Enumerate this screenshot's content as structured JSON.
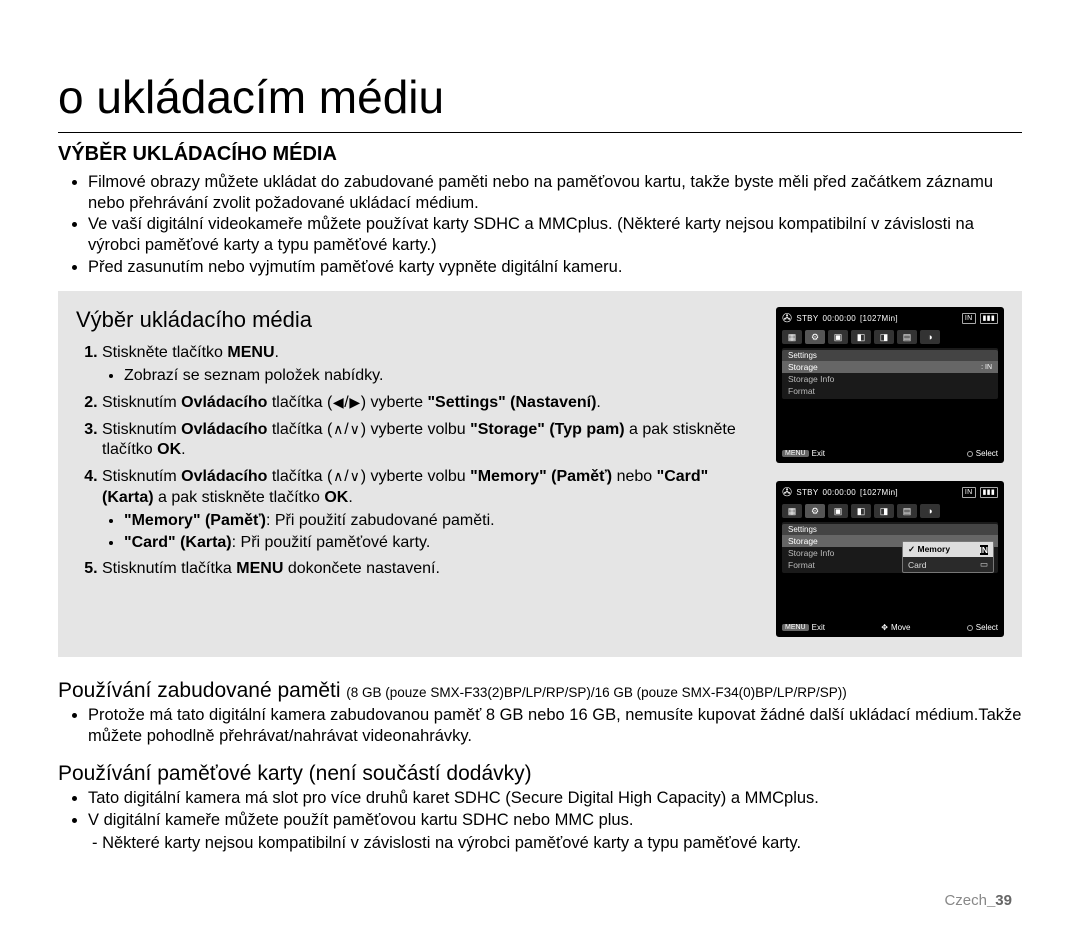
{
  "page": {
    "title": "o ukládacím médiu",
    "section_heading": "VÝBĚR UKLÁDACÍHO MÉDIA",
    "footer_lang": "Czech",
    "footer_page": "_39"
  },
  "intro_bullets": [
    "Filmové obrazy můžete ukládat do zabudované paměti nebo na paměťovou kartu, takže byste měli před začátkem záznamu nebo přehrávání zvolit požadované ukládací médium.",
    "Ve vaší digitální videokameře můžete používat karty SDHC a MMCplus. (Některé karty nejsou kompatibilní v závislosti na výrobci paměťové karty a typu paměťové karty.)",
    "Před zasunutím nebo vyjmutím paměťové karty vypněte digitální kameru."
  ],
  "graybox": {
    "title": "Výběr ukládacího média",
    "steps": {
      "s1_a": "Stiskněte tlačítko ",
      "s1_b_bold": "MENU",
      "s1_c": ".",
      "s1_sub": "Zobrazí se seznam položek nabídky.",
      "s2_a": "Stisknutím ",
      "s2_b_bold": "Ovládacího",
      "s2_c": " tlačítka (",
      "s2_d": ") vyberte ",
      "s2_e_bold": "\"Settings\" (Nastavení)",
      "s2_f": ".",
      "s3_a": "Stisknutím ",
      "s3_b_bold": "Ovládacího",
      "s3_c": " tlačítka (",
      "s3_d": ") vyberte volbu ",
      "s3_e_bold": "\"Storage\" (Typ pam)",
      "s3_f": " a pak stiskněte tlačítko ",
      "s3_g_bold": "OK",
      "s3_h": ".",
      "s4_a": "Stisknutím ",
      "s4_b_bold": "Ovládacího",
      "s4_c": " tlačítka (",
      "s4_d": ") vyberte volbu ",
      "s4_e_bold": "\"Memory\" (Paměť)",
      "s4_f": " nebo ",
      "s4_g_bold": "\"Card\" (Karta)",
      "s4_h": " a pak stiskněte tlačítko ",
      "s4_i_bold": "OK",
      "s4_j": ".",
      "s4_sub1_a_bold": "\"Memory\" (Paměť)",
      "s4_sub1_b": ": Při použití zabudované paměti.",
      "s4_sub2_a_bold": "\"Card\" (Karta)",
      "s4_sub2_b": ": Při použití paměťové karty.",
      "s5_a": "Stisknutím tlačítka ",
      "s5_b_bold": "MENU",
      "s5_c": " dokončete nastavení."
    },
    "arrow_left": "◀",
    "arrow_right": "▶",
    "arrow_up": "∧",
    "arrow_down": "∨"
  },
  "lcd": {
    "stby": "STBY",
    "time": "00:00:00",
    "remain": "[1027Min]",
    "in": "IN",
    "settings": "Settings",
    "storage": "Storage",
    "storage_info": "Storage Info",
    "format": "Format",
    "memory": "Memory",
    "card": "Card",
    "menu_btn": "MENU",
    "exit": "Exit",
    "select": "Select",
    "move": "Move",
    "check": "✓",
    "in_badge": "IN",
    "card_icon": "▭"
  },
  "lower": {
    "builtin_title": "Používání zabudované paměti",
    "builtin_note": " (8 GB (pouze SMX-F33(2)BP/LP/RP/SP)/16 GB (pouze SMX-F34(0)BP/LP/RP/SP))",
    "builtin_bullet": "Protože má tato digitální kamera zabudovanou paměť 8 GB nebo 16 GB, nemusíte kupovat žádné další ukládací médium.Takže můžete pohodlně přehrávat/nahrávat videonahrávky.",
    "card_title": "Používání paměťové karty (není součástí dodávky)",
    "card_bullet1": "Tato digitální kamera má slot pro více druhů karet SDHC (Secure Digital High Capacity) a MMCplus.",
    "card_bullet2": "V digitální kameře můžete použít paměťovou kartu SDHC nebo MMC plus.",
    "card_bullet2_dash": "- Některé karty nejsou kompatibilní v závislosti na výrobci paměťové karty a typu paměťové karty."
  },
  "colors": {
    "bg": "#ffffff",
    "graybox": "#e5e5e5",
    "lcd_bg": "#000000",
    "lcd_text": "#ffffff",
    "footer_gray": "#888888"
  }
}
